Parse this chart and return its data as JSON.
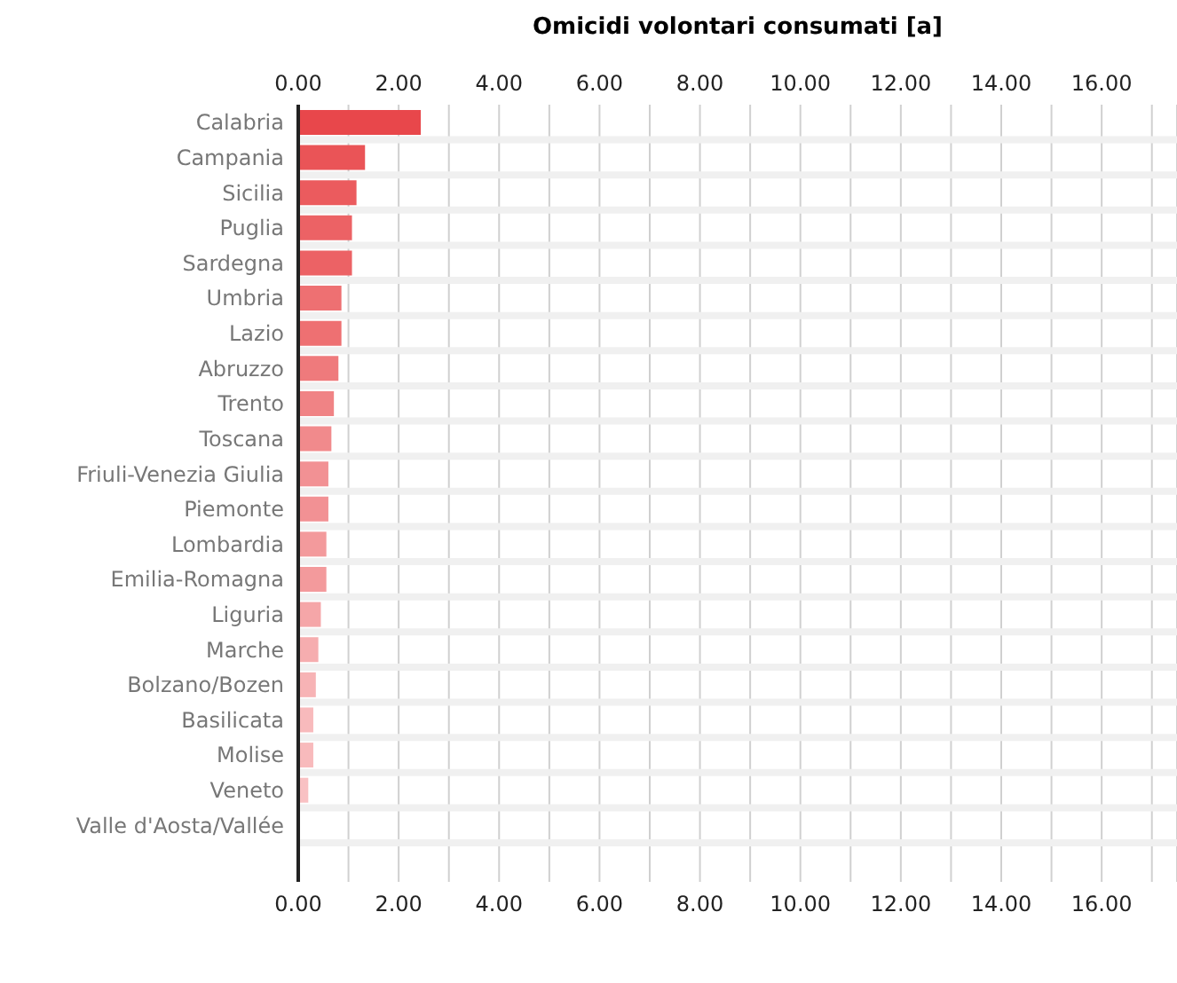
{
  "chart_data": {
    "type": "bar",
    "orientation": "horizontal",
    "title": "Omicidi volontari consumati [a]",
    "categories": [
      "Calabria",
      "Campania",
      "Sicilia",
      "Puglia",
      "Sardegna",
      "Umbria",
      "Lazio",
      "Abruzzo",
      "Trento",
      "Toscana",
      "Friuli-Venezia Giulia",
      "Piemonte",
      "Lombardia",
      "Emilia-Romagna",
      "Liguria",
      "Marche",
      "Bolzano/Bozen",
      "Basilicata",
      "Molise",
      "Veneto",
      "Valle d'Aosta/Vallée"
    ],
    "values": [
      2.44,
      1.33,
      1.16,
      1.07,
      1.07,
      0.86,
      0.86,
      0.8,
      0.71,
      0.66,
      0.6,
      0.6,
      0.56,
      0.56,
      0.45,
      0.4,
      0.35,
      0.3,
      0.3,
      0.2,
      0
    ],
    "colors": [
      "#e8474b",
      "#ea5457",
      "#eb5b5e",
      "#ec6265",
      "#ec6265",
      "#ee7072",
      "#ee7072",
      "#ef7a7c",
      "#f08385",
      "#f18a8c",
      "#f29194",
      "#f29194",
      "#f39a9c",
      "#f39a9c",
      "#f5a6a8",
      "#f6adaf",
      "#f7b3b5",
      "#f8babc",
      "#f8babc",
      "#f9c1c3",
      "#fac8ca"
    ],
    "xlim": [
      0,
      17.5
    ],
    "xticks": [
      {
        "value": 0,
        "label": "0.00"
      },
      {
        "value": 1,
        "label": null
      },
      {
        "value": 2,
        "label": "2.00"
      },
      {
        "value": 3,
        "label": null
      },
      {
        "value": 4,
        "label": "4.00"
      },
      {
        "value": 5,
        "label": null
      },
      {
        "value": 6,
        "label": "6.00"
      },
      {
        "value": 7,
        "label": null
      },
      {
        "value": 8,
        "label": "8.00"
      },
      {
        "value": 9,
        "label": null
      },
      {
        "value": 10,
        "label": "10.00"
      },
      {
        "value": 11,
        "label": null
      },
      {
        "value": 12,
        "label": "12.00"
      },
      {
        "value": 13,
        "label": null
      },
      {
        "value": 14,
        "label": "14.00"
      },
      {
        "value": 15,
        "label": null
      },
      {
        "value": 16,
        "label": "16.00"
      },
      {
        "value": 17,
        "label": null
      }
    ],
    "x2lim": [
      0,
      17.5
    ],
    "x2ticks": [
      {
        "value": 0,
        "label": "0.00"
      },
      {
        "value": 1,
        "label": null
      },
      {
        "value": 2,
        "label": "2.00"
      },
      {
        "value": 3,
        "label": null
      },
      {
        "value": 4,
        "label": "4.00"
      },
      {
        "value": 5,
        "label": null
      },
      {
        "value": 6,
        "label": "6.00"
      },
      {
        "value": 7,
        "label": null
      },
      {
        "value": 8,
        "label": "8.00"
      },
      {
        "value": 9,
        "label": null
      },
      {
        "value": 10,
        "label": "10.00"
      },
      {
        "value": 11,
        "label": null
      },
      {
        "value": 12,
        "label": "12.00"
      },
      {
        "value": 13,
        "label": null
      },
      {
        "value": 14,
        "label": "14.00"
      },
      {
        "value": 15,
        "label": null
      },
      {
        "value": 16,
        "label": "16.00"
      },
      {
        "value": 17,
        "label": null
      }
    ],
    "grid": true
  }
}
